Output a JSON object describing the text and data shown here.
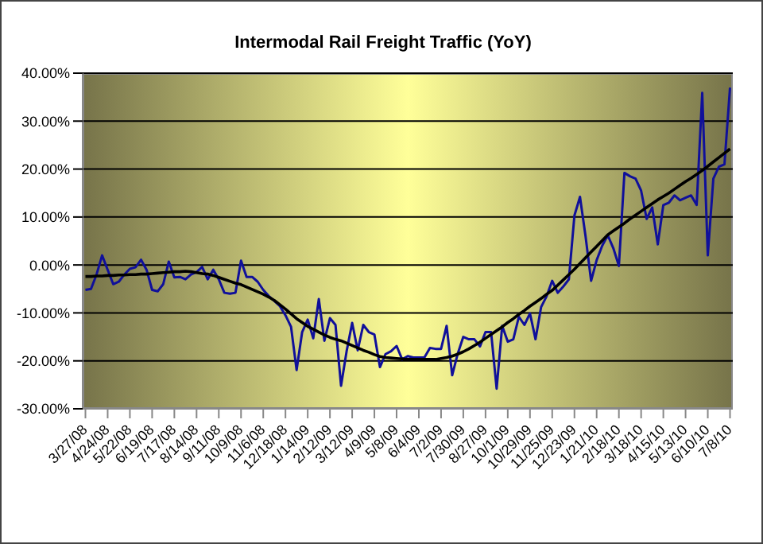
{
  "chart_data": {
    "type": "line",
    "title": "Intermodal Rail Freight Traffic (YoY)",
    "categories": [
      "3/27/08",
      null,
      null,
      null,
      "4/24/08",
      null,
      null,
      null,
      "5/22/08",
      null,
      null,
      null,
      "6/19/08",
      null,
      null,
      null,
      "7/17/08",
      null,
      null,
      null,
      "8/14/08",
      null,
      null,
      null,
      "9/11/08",
      null,
      null,
      null,
      "10/9/08",
      null,
      null,
      null,
      "11/6/08",
      null,
      null,
      null,
      "12/18/08",
      null,
      null,
      null,
      "1/14/09",
      null,
      null,
      null,
      "2/12/09",
      null,
      null,
      null,
      "3/12/09",
      null,
      null,
      null,
      "4/9/09",
      null,
      null,
      null,
      "5/8/09",
      null,
      null,
      null,
      "6/4/09",
      null,
      null,
      null,
      "7/2/09",
      null,
      null,
      null,
      "7/30/09",
      null,
      null,
      null,
      "8/27/09",
      null,
      null,
      null,
      "10/1/09",
      null,
      null,
      null,
      "10/29/09",
      null,
      null,
      null,
      "11/25/09",
      null,
      null,
      null,
      "12/23/09",
      null,
      null,
      null,
      "1/21/10",
      null,
      null,
      null,
      "2/18/10",
      null,
      null,
      null,
      "3/18/10",
      null,
      null,
      null,
      "4/15/10",
      null,
      null,
      null,
      "5/13/10",
      null,
      null,
      null,
      "6/10/10",
      null,
      null,
      null,
      "7/8/10"
    ],
    "series": [
      {
        "type": "line",
        "color": "#10109a",
        "values": [
          -5.2,
          -5,
          -2,
          2,
          -1,
          -4,
          -3.5,
          -2,
          -0.8,
          -0.5,
          1.1,
          -1,
          -5.2,
          -5.5,
          -4,
          0.7,
          -2.6,
          -2.5,
          -3,
          -2,
          -1.5,
          -0.4,
          -3,
          -1,
          -3,
          -5.8,
          -6,
          -5.8,
          0.9,
          -2.5,
          -2.5,
          -3.5,
          -5.2,
          -6.5,
          -7.5,
          -8.6,
          -10.5,
          -12.9,
          -21.9,
          -14,
          -11.4,
          -15.3,
          -7.1,
          -15.8,
          -11.1,
          -12.5,
          -25.2,
          -18,
          -12.1,
          -17.8,
          -12.5,
          -14,
          -14.5,
          -21.3,
          -18.6,
          -18,
          -16.9,
          -19.7,
          -19,
          -19.3,
          -19.3,
          -19.3,
          -17.3,
          -17.5,
          -17.5,
          -12.7,
          -23,
          -18.5,
          -15,
          -15.5,
          -15.5,
          -17,
          -14,
          -14,
          -25.8,
          -12.7,
          -16,
          -15.5,
          -10.8,
          -12.5,
          -10.1,
          -15.5,
          -8.8,
          -6.5,
          -3.3,
          -5.8,
          -4.5,
          -3,
          10.3,
          14.2,
          6,
          -3.3,
          1,
          4,
          6.2,
          3.5,
          -0.2,
          19.2,
          18.5,
          18,
          15.5,
          9.6,
          12,
          4.3,
          12.5,
          13,
          14.5,
          13.5,
          14,
          14.5,
          12.5,
          35.9,
          2,
          18,
          20.5,
          21,
          37
        ]
      },
      {
        "type": "line",
        "color": "#000000",
        "values": [
          -2.4,
          -2.4,
          -2.3,
          -2.3,
          -2.2,
          -2.2,
          -2.1,
          -2.1,
          -2,
          -2,
          -1.9,
          -1.9,
          -1.8,
          -1.7,
          -1.6,
          -1.5,
          -1.4,
          -1.4,
          -1.3,
          -1.4,
          -1.6,
          -1.8,
          -1.9,
          -2.2,
          -2.6,
          -3,
          -3.4,
          -3.8,
          -4.1,
          -4.6,
          -5.1,
          -5.6,
          -6.1,
          -6.7,
          -7.4,
          -8.3,
          -9.2,
          -10.2,
          -11.2,
          -12,
          -12.8,
          -13.4,
          -14,
          -14.6,
          -15.1,
          -15.5,
          -15.8,
          -16.3,
          -16.8,
          -17.3,
          -17.8,
          -18.2,
          -18.7,
          -19.1,
          -19.3,
          -19.4,
          -19.5,
          -19.6,
          -19.7,
          -19.7,
          -19.7,
          -19.7,
          -19.7,
          -19.7,
          -19.5,
          -19.3,
          -19,
          -18.6,
          -18.1,
          -17.5,
          -16.8,
          -16.1,
          -15.3,
          -14.5,
          -13.7,
          -12.9,
          -12,
          -11.2,
          -10.3,
          -9.5,
          -8.6,
          -7.8,
          -7,
          -6.1,
          -5.3,
          -4.2,
          -3.1,
          -2,
          -0.9,
          0.3,
          1.5,
          2.7,
          3.9,
          5.1,
          6.3,
          7.1,
          7.9,
          8.7,
          9.6,
          10.4,
          11.2,
          12,
          12.8,
          13.6,
          14.3,
          15,
          15.8,
          16.6,
          17.4,
          18.1,
          18.9,
          19.7,
          20.6,
          21.5,
          22.4,
          23.3,
          24.2
        ]
      }
    ],
    "ylim": [
      -30,
      40
    ],
    "yticks": [
      {
        "value": -30,
        "label": "-30.00%"
      },
      {
        "value": -20,
        "label": "-20.00%"
      },
      {
        "value": -10,
        "label": "-10.00%"
      },
      {
        "value": 0,
        "label": "0.00%"
      },
      {
        "value": 10,
        "label": "10.00%"
      },
      {
        "value": 20,
        "label": "20.00%"
      },
      {
        "value": 30,
        "label": "30.00%"
      },
      {
        "value": 40,
        "label": "40.00%"
      }
    ],
    "grid": "y",
    "marker": "none",
    "line_style": "solid"
  }
}
